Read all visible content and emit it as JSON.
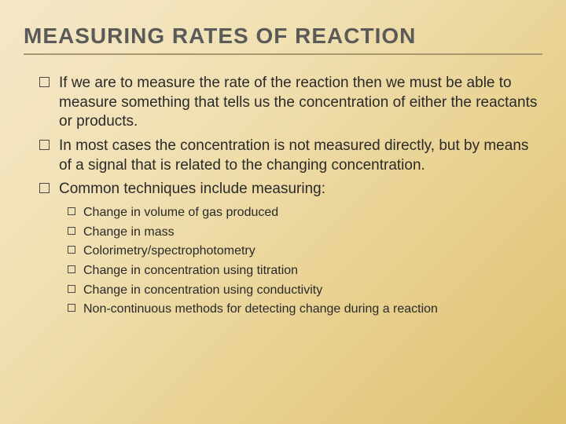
{
  "title": "MEASURING RATES OF REACTION",
  "bullets": [
    {
      "text": "If we are to measure the rate of the reaction then we must be able to measure something that tells us the concentration of either the reactants or products."
    },
    {
      "text": "In most cases the concentration is not measured directly, but by means of a signal that is related to the changing concentration."
    },
    {
      "text": "Common techniques include measuring:"
    }
  ],
  "subbullets": [
    {
      "text": "Change in volume of gas produced"
    },
    {
      "text": "Change in mass"
    },
    {
      "text": "Colorimetry/spectrophotometry"
    },
    {
      "text": "Change in concentration using titration"
    },
    {
      "text": "Change in concentration using conductivity"
    },
    {
      "text": "Non-continuous methods for detecting change during a reaction"
    }
  ],
  "style": {
    "background_gradient_start": "#f5e8c8",
    "background_gradient_end": "#ddc070",
    "title_color": "#5a5a58",
    "title_fontsize": 28,
    "title_underline_color": "#a89870",
    "body_text_color": "#2a2a28",
    "bullet_fontsize": 19,
    "subbullet_fontsize": 16,
    "bullet_box_border": "#4a4a48",
    "bullet_box_size": 13,
    "subbullet_box_size": 10
  }
}
